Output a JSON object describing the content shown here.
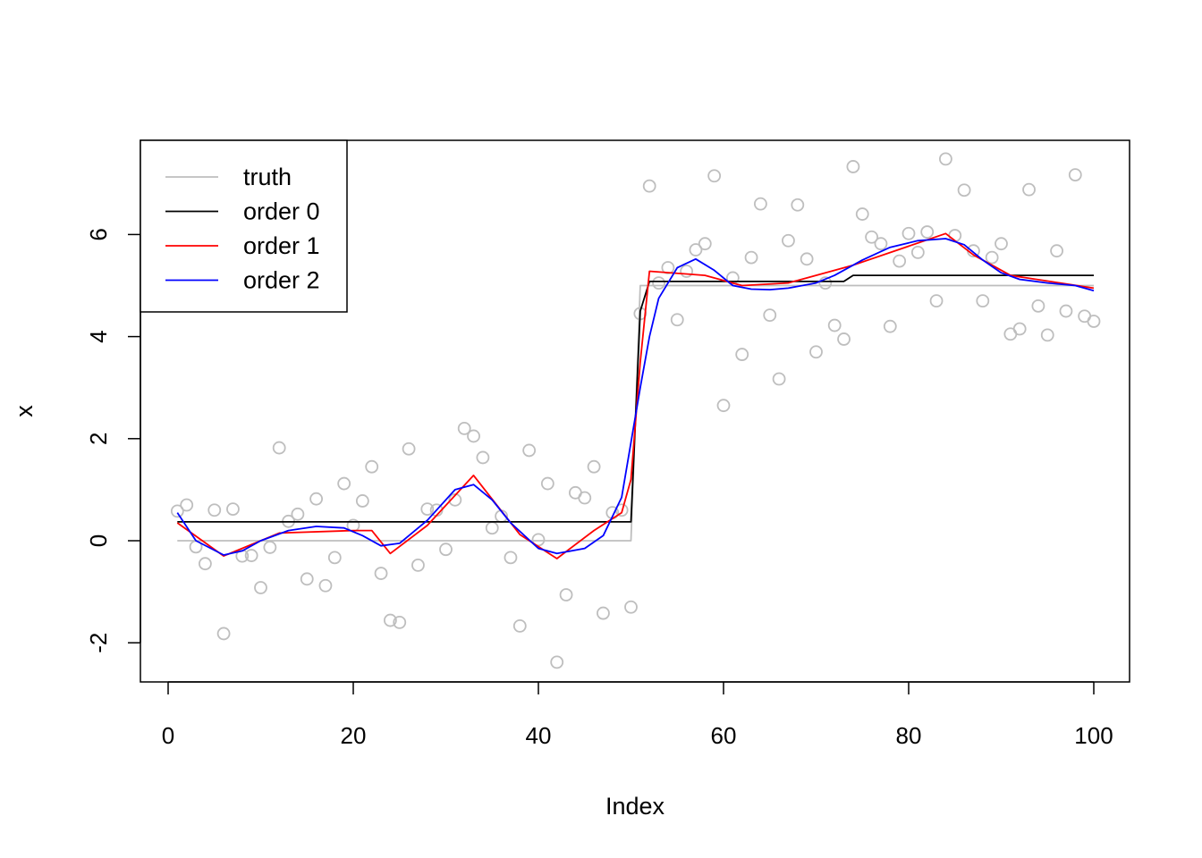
{
  "chart_data": {
    "type": "scatter",
    "title": "",
    "xlabel": "Index",
    "ylabel": "x",
    "xlim": [
      0,
      100
    ],
    "ylim": [
      -2.6,
      7.6
    ],
    "x_ticks": [
      0,
      20,
      40,
      60,
      80,
      100
    ],
    "y_ticks": [
      -2,
      0,
      2,
      4,
      6
    ],
    "grid": false,
    "legend_position": "top-left",
    "points": {
      "color": "#bebebe",
      "x": [
        1,
        2,
        3,
        4,
        5,
        6,
        7,
        8,
        9,
        10,
        11,
        12,
        13,
        14,
        15,
        16,
        17,
        18,
        19,
        20,
        21,
        22,
        23,
        24,
        25,
        26,
        27,
        28,
        29,
        30,
        31,
        32,
        33,
        34,
        35,
        36,
        37,
        38,
        39,
        40,
        41,
        42,
        43,
        44,
        45,
        46,
        47,
        48,
        49,
        50,
        51,
        52,
        53,
        54,
        55,
        56,
        57,
        58,
        59,
        60,
        61,
        62,
        63,
        64,
        65,
        66,
        67,
        68,
        69,
        70,
        71,
        72,
        73,
        74,
        75,
        76,
        77,
        78,
        79,
        80,
        81,
        82,
        83,
        84,
        85,
        86,
        87,
        88,
        89,
        90,
        91,
        92,
        93,
        94,
        95,
        96,
        97,
        98,
        99,
        100
      ],
      "y": [
        0.58,
        0.7,
        -0.12,
        -0.45,
        0.6,
        -1.82,
        0.62,
        -0.3,
        -0.29,
        -0.92,
        -0.13,
        1.82,
        0.38,
        0.52,
        -0.75,
        0.82,
        -0.88,
        -0.33,
        1.12,
        0.3,
        0.78,
        1.45,
        -0.64,
        -1.56,
        -1.6,
        1.8,
        -0.48,
        0.62,
        0.6,
        -0.17,
        0.8,
        2.2,
        2.05,
        1.63,
        0.25,
        0.48,
        -0.33,
        -1.67,
        1.77,
        0.02,
        1.12,
        -2.38,
        -1.06,
        0.94,
        0.84,
        1.45,
        -1.42,
        0.55,
        0.6,
        -1.3,
        4.45,
        6.95,
        5.05,
        5.35,
        4.33,
        5.28,
        5.7,
        5.82,
        7.15,
        2.65,
        5.15,
        3.65,
        5.55,
        6.6,
        4.42,
        3.17,
        5.88,
        6.58,
        5.52,
        3.7,
        5.05,
        4.22,
        3.95,
        7.33,
        6.4,
        5.95,
        5.82,
        4.2,
        5.48,
        6.02,
        5.65,
        6.05,
        4.7,
        7.48,
        5.98,
        6.87,
        5.68,
        4.7,
        5.55,
        5.82,
        4.05,
        4.15,
        6.88,
        4.6,
        4.03,
        5.68,
        4.5,
        7.17,
        4.4,
        4.3
      ]
    },
    "series": [
      {
        "name": "truth",
        "color": "#bebebe",
        "x": [
          1,
          50,
          51,
          100
        ],
        "y": [
          0,
          0,
          5,
          5
        ]
      },
      {
        "name": "order 0",
        "color": "#000000",
        "x": [
          1,
          50,
          51,
          52,
          73,
          74,
          100
        ],
        "y": [
          0.37,
          0.37,
          4.5,
          5.08,
          5.08,
          5.2,
          5.2
        ]
      },
      {
        "name": "order 1",
        "color": "#ff0000",
        "x": [
          1,
          6,
          12,
          20,
          22,
          24,
          28,
          33,
          38,
          42,
          46,
          49,
          50,
          51,
          52,
          58,
          62,
          67,
          74,
          84,
          87,
          91,
          100
        ],
        "y": [
          0.35,
          -0.3,
          0.15,
          0.2,
          0.2,
          -0.25,
          0.3,
          1.28,
          0.12,
          -0.35,
          0.2,
          0.55,
          1.2,
          3.5,
          5.28,
          5.2,
          5.0,
          5.05,
          5.4,
          6.02,
          5.6,
          5.2,
          4.95
        ]
      },
      {
        "name": "order 2",
        "color": "#0000ff",
        "x": [
          1,
          3,
          6,
          8,
          10,
          13,
          16,
          19,
          21,
          23,
          25,
          28,
          31,
          33,
          35,
          37,
          40,
          42,
          45,
          47,
          49,
          51,
          52,
          53,
          55,
          57,
          59,
          61,
          63,
          65,
          67,
          70,
          72,
          75,
          78,
          81,
          84,
          86,
          88,
          90,
          92,
          95,
          98,
          100
        ],
        "y": [
          0.55,
          0.0,
          -0.28,
          -0.2,
          0.0,
          0.2,
          0.28,
          0.25,
          0.1,
          -0.1,
          -0.05,
          0.4,
          1.0,
          1.1,
          0.8,
          0.35,
          -0.15,
          -0.25,
          -0.15,
          0.1,
          0.85,
          3.0,
          4.0,
          4.75,
          5.35,
          5.52,
          5.3,
          5.0,
          4.93,
          4.92,
          4.95,
          5.05,
          5.2,
          5.5,
          5.75,
          5.88,
          5.92,
          5.8,
          5.5,
          5.25,
          5.12,
          5.05,
          5.0,
          4.9
        ]
      }
    ]
  }
}
